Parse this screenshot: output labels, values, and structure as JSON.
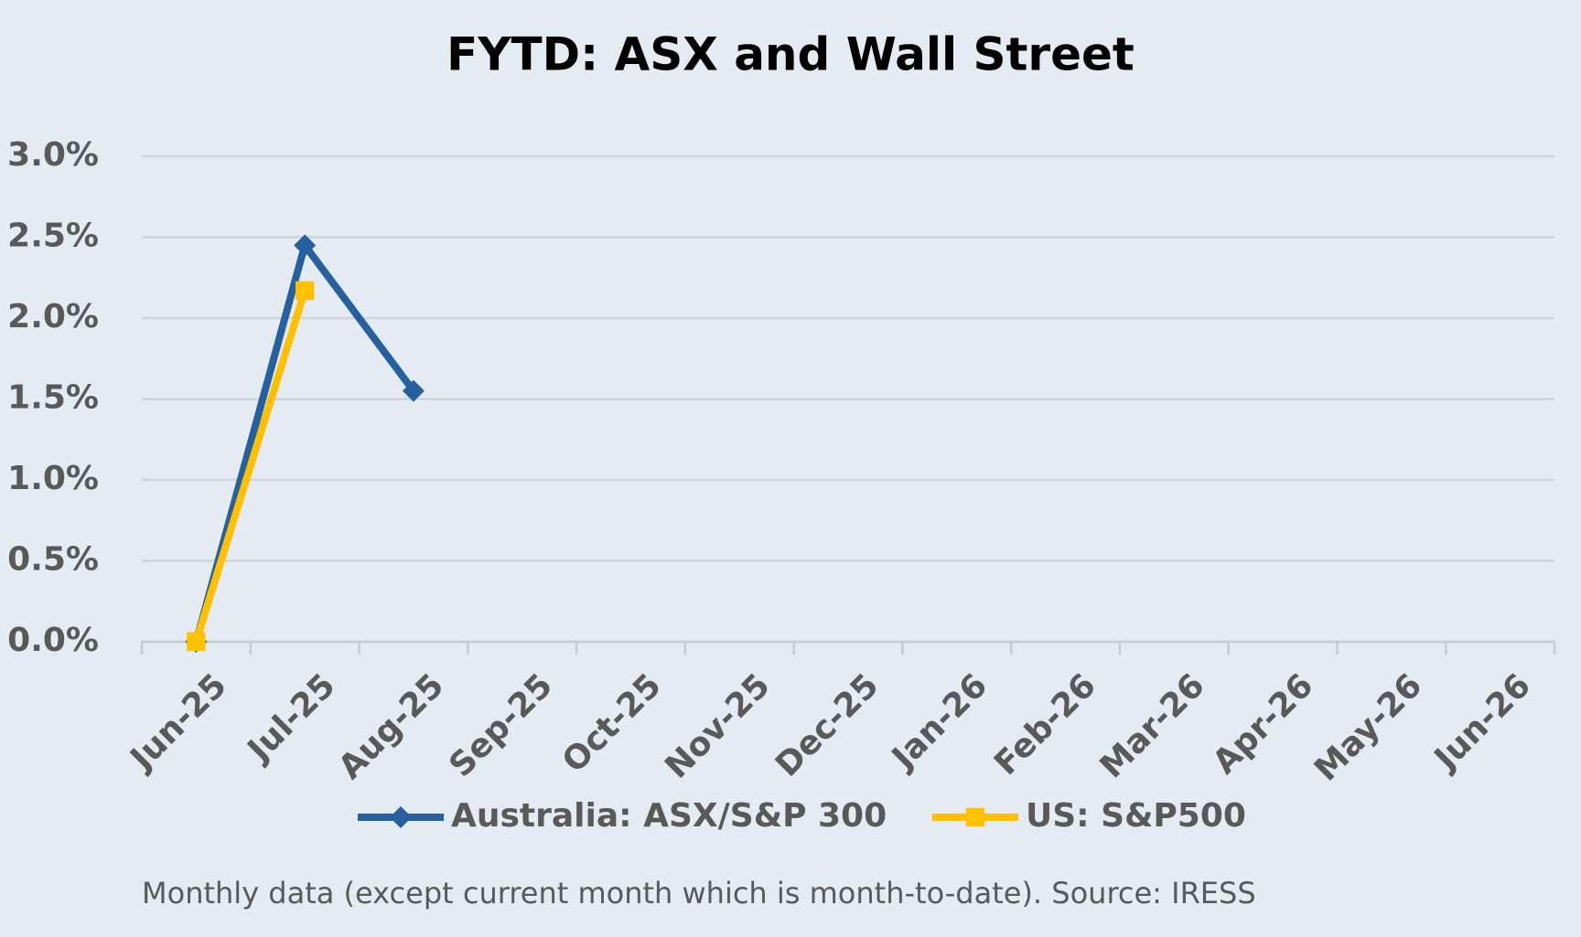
{
  "chart_data": {
    "type": "line",
    "title": "FYTD: ASX and Wall Street",
    "categories": [
      "Jun-25",
      "Jul-25",
      "Aug-25",
      "Sep-25",
      "Oct-25",
      "Nov-25",
      "Dec-25",
      "Jan-26",
      "Feb-26",
      "Mar-26",
      "Apr-26",
      "May-26",
      "Jun-26"
    ],
    "series": [
      {
        "name": "Australia: ASX/S&P 300",
        "color": "#27609f",
        "marker": "diamond",
        "values": [
          0,
          2.45,
          1.55,
          null,
          null,
          null,
          null,
          null,
          null,
          null,
          null,
          null,
          null
        ]
      },
      {
        "name": "US: S&P500",
        "color": "#ffc000",
        "marker": "square",
        "values": [
          0,
          2.17,
          null,
          null,
          null,
          null,
          null,
          null,
          null,
          null,
          null,
          null,
          null
        ]
      }
    ],
    "ylim": [
      0,
      3
    ],
    "yticks": [
      {
        "value": 0,
        "label": "0.0%"
      },
      {
        "value": 0.5,
        "label": "0.5%"
      },
      {
        "value": 1,
        "label": "1.0%"
      },
      {
        "value": 1.5,
        "label": "1.5%"
      },
      {
        "value": 2,
        "label": "2.0%"
      },
      {
        "value": 2.5,
        "label": "2.5%"
      },
      {
        "value": 3,
        "label": "3.0%"
      }
    ],
    "grid": true,
    "legend": "bottom",
    "note": "Monthly data (except current month which is month-to-date).  Source: IRESS"
  }
}
